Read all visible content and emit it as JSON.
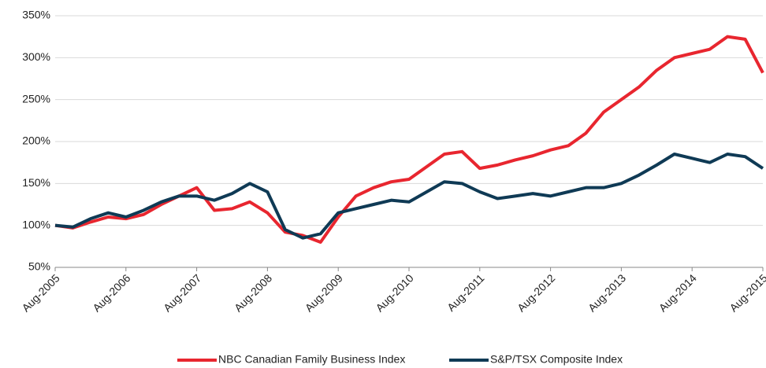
{
  "chart_data": {
    "type": "line",
    "x": [
      "2005-08",
      "2005-11",
      "2006-02",
      "2006-05",
      "2006-08",
      "2006-11",
      "2007-02",
      "2007-05",
      "2007-08",
      "2007-11",
      "2008-02",
      "2008-05",
      "2008-08",
      "2008-11",
      "2009-02",
      "2009-05",
      "2009-08",
      "2009-11",
      "2010-02",
      "2010-05",
      "2010-08",
      "2010-11",
      "2011-02",
      "2011-05",
      "2011-08",
      "2011-11",
      "2012-02",
      "2012-05",
      "2012-08",
      "2012-11",
      "2013-02",
      "2013-05",
      "2013-08",
      "2013-11",
      "2014-02",
      "2014-05",
      "2014-08",
      "2014-11",
      "2015-02",
      "2015-05",
      "2015-08"
    ],
    "series": [
      {
        "name": "NBC Canadian Family Business Index",
        "color": "#e8262f",
        "values": [
          100,
          97,
          104,
          110,
          108,
          113,
          125,
          135,
          145,
          118,
          120,
          128,
          115,
          92,
          88,
          80,
          110,
          135,
          145,
          152,
          155,
          170,
          185,
          188,
          168,
          172,
          178,
          183,
          190,
          195,
          210,
          235,
          250,
          265,
          285,
          300,
          305,
          310,
          325,
          322,
          282
        ]
      },
      {
        "name": "S&P/TSX Composite Index",
        "color": "#0f3a55",
        "values": [
          100,
          98,
          108,
          115,
          110,
          118,
          128,
          135,
          135,
          130,
          138,
          150,
          140,
          95,
          85,
          90,
          115,
          120,
          125,
          130,
          128,
          140,
          152,
          150,
          140,
          132,
          135,
          138,
          135,
          140,
          145,
          145,
          150,
          160,
          172,
          185,
          180,
          175,
          185,
          182,
          168
        ]
      }
    ],
    "xlim": [
      "2005-08",
      "2015-08"
    ],
    "xticks": [
      {
        "value": "2005-08",
        "label": "Aug-2005"
      },
      {
        "value": "2006-08",
        "label": "Aug-2006"
      },
      {
        "value": "2007-08",
        "label": "Aug-2007"
      },
      {
        "value": "2008-08",
        "label": "Aug-2008"
      },
      {
        "value": "2009-08",
        "label": "Aug-2009"
      },
      {
        "value": "2010-08",
        "label": "Aug-2010"
      },
      {
        "value": "2011-08",
        "label": "Aug-2011"
      },
      {
        "value": "2012-08",
        "label": "Aug-2012"
      },
      {
        "value": "2013-08",
        "label": "Aug-2013"
      },
      {
        "value": "2014-08",
        "label": "Aug-2014"
      },
      {
        "value": "2015-08",
        "label": "Aug-2015"
      }
    ],
    "ylim": [
      50,
      350
    ],
    "yticks": [
      {
        "value": 50,
        "label": "50%"
      },
      {
        "value": 100,
        "label": "100%"
      },
      {
        "value": 150,
        "label": "150%"
      },
      {
        "value": 200,
        "label": "200%"
      },
      {
        "value": 250,
        "label": "250%"
      },
      {
        "value": 300,
        "label": "300%"
      },
      {
        "value": 350,
        "label": "350%"
      }
    ],
    "grid": true,
    "legend": "bottom"
  }
}
